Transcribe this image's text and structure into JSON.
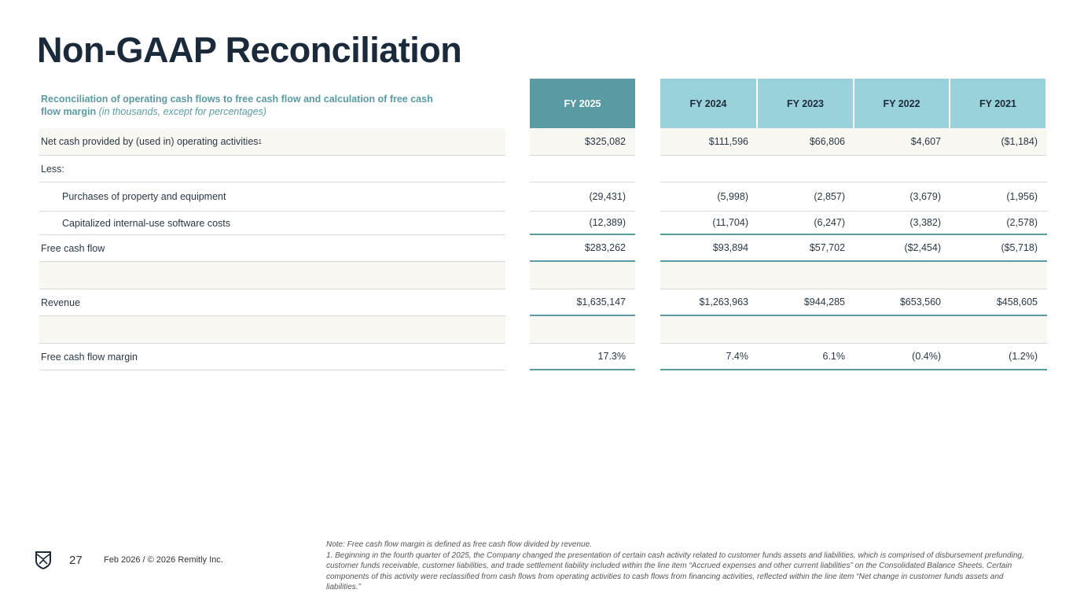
{
  "title": "Non-GAAP Reconciliation",
  "subtitle": {
    "bold": "Reconciliation of operating cash flows to free cash flow and calculation of free cash flow margin",
    "italic": "(in thousands, except for percentages)"
  },
  "columns": [
    "FY 2025",
    "FY 2024",
    "FY 2023",
    "FY 2022",
    "FY 2021"
  ],
  "rows": [
    {
      "label": "Net cash provided by (used in) operating activities",
      "sup": "1",
      "values": [
        "$325,082",
        "$111,596",
        "$66,806",
        "$4,607",
        "($1,184)"
      ]
    },
    {
      "label": "Less:",
      "values": [
        "",
        "",
        "",
        "",
        ""
      ]
    },
    {
      "label": "Purchases of property and equipment",
      "values": [
        "(29,431)",
        "(5,998)",
        "(2,857)",
        "(3,679)",
        "(1,956)"
      ]
    },
    {
      "label": "Capitalized internal-use software costs",
      "values": [
        "(12,389)",
        "(11,704)",
        "(6,247)",
        "(3,382)",
        "(2,578)"
      ]
    },
    {
      "label": "Free cash flow",
      "values": [
        "$283,262",
        "$93,894",
        "$57,702",
        "($2,454)",
        "($5,718)"
      ]
    },
    {
      "label": "",
      "values": [
        "",
        "",
        "",
        "",
        ""
      ]
    },
    {
      "label": "Revenue",
      "values": [
        "$1,635,147",
        "$1,263,963",
        "$944,285",
        "$653,560",
        "$458,605"
      ]
    },
    {
      "label": "",
      "values": [
        "",
        "",
        "",
        "",
        ""
      ]
    },
    {
      "label": "Free cash flow margin",
      "values": [
        "17.3%",
        "7.4%",
        "6.1%",
        "(0.4%)",
        "(1.2%)"
      ]
    }
  ],
  "footer": {
    "page": "27",
    "copyright": "Feb 2026 / © 2026 Remitly Inc.",
    "note": "Note: Free cash flow margin is defined as free cash flow divided by revenue.",
    "footnote": "1. Beginning in the fourth quarter of 2025, the Company changed the presentation of certain cash activity related to customer funds assets and liabilities, which is comprised of disbursement prefunding, customer funds receivable, customer liabilities, and trade settlement liability included within the line item “Accrued expenses and other current liabilities” on the Consolidated Balance Sheets. Certain components of this activity were reclassified from cash flows from operating activities to cash flows from financing activities, reflected within the line item “Net change in customer funds assets and liabilities.”"
  },
  "colors": {
    "accent_dark": "#5a9aa2",
    "accent_light": "#9ad2db",
    "title": "#1b2a3b"
  },
  "logo_icon": "remitly-shield-icon"
}
